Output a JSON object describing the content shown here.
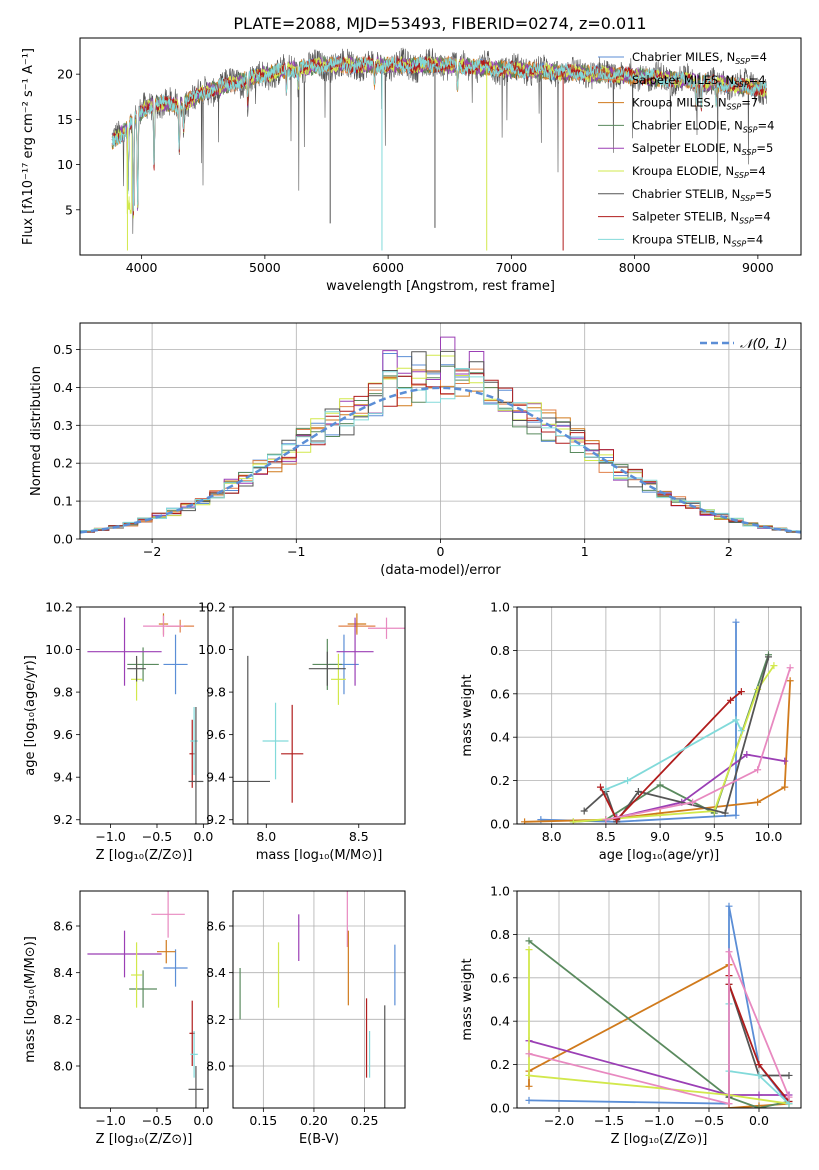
{
  "figure_title": "PLATE=2088, MJD=53493, FIBERID=0274, z=0.011",
  "colors": {
    "Chabrier MILES": "#5b8ed6",
    "Salpeter MILES": "#e0804a",
    "Kroupa MILES": "#d07a1c",
    "Chabrier ELODIE": "#5a8a5e",
    "Salpeter ELODIE": "#9b3fb5",
    "Kroupa ELODIE": "#d2e84c",
    "Chabrier STELIB": "#555555",
    "Salpeter STELIB": "#b01c1c",
    "Kroupa STELIB": "#82dada",
    "pink": "#e889c0",
    "normal_curve": "#5b8ed6",
    "grid": "#b0b0b0"
  },
  "chart_data": [
    {
      "id": "spectrum",
      "type": "line",
      "xlabel": "wavelength [Angstrom, rest frame]",
      "ylabel": "Flux [fλ10⁻¹⁷ erg cm⁻² s⁻¹ A⁻¹]",
      "xlim": [
        3500,
        9350
      ],
      "ylim": [
        0,
        24
      ],
      "xticks": [
        4000,
        5000,
        6000,
        7000,
        8000,
        9000
      ],
      "yticks": [
        5,
        10,
        15,
        20
      ],
      "grid": false,
      "legend_position": "upper right",
      "legend": [
        {
          "label": "Chabrier MILES, N",
          "sub": "SSP",
          "suffix": "=4",
          "key": "Chabrier MILES"
        },
        {
          "label": "Salpeter MILES, N",
          "sub": "SSP",
          "suffix": "=4",
          "key": "Salpeter MILES"
        },
        {
          "label": "Kroupa MILES, N",
          "sub": "SSP",
          "suffix": "=7",
          "key": "Kroupa MILES"
        },
        {
          "label": "Chabrier ELODIE, N",
          "sub": "SSP",
          "suffix": "=4",
          "key": "Chabrier ELODIE"
        },
        {
          "label": "Salpeter ELODIE, N",
          "sub": "SSP",
          "suffix": "=5",
          "key": "Salpeter ELODIE"
        },
        {
          "label": "Kroupa ELODIE, N",
          "sub": "SSP",
          "suffix": "=4",
          "key": "Kroupa ELODIE"
        },
        {
          "label": "Chabrier STELIB, N",
          "sub": "SSP",
          "suffix": "=5",
          "key": "Chabrier STELIB"
        },
        {
          "label": "Salpeter STELIB, N",
          "sub": "SSP",
          "suffix": "=4",
          "key": "Salpeter STELIB"
        },
        {
          "label": "Kroupa STELIB, N",
          "sub": "SSP",
          "suffix": "=4",
          "key": "Kroupa STELIB"
        }
      ],
      "continuum": [
        [
          3760,
          12.5
        ],
        [
          3850,
          13.5
        ],
        [
          3950,
          15.2
        ],
        [
          4050,
          16.4
        ],
        [
          4150,
          16.8
        ],
        [
          4300,
          16.5
        ],
        [
          4500,
          18.0
        ],
        [
          4700,
          18.8
        ],
        [
          5000,
          20.0
        ],
        [
          5200,
          20.5
        ],
        [
          5500,
          21.0
        ],
        [
          6000,
          21.0
        ],
        [
          6500,
          21.0
        ],
        [
          7000,
          20.5
        ],
        [
          7500,
          20.2
        ],
        [
          8000,
          19.8
        ],
        [
          8500,
          19.2
        ],
        [
          9000,
          18.5
        ],
        [
          9070,
          18.2
        ]
      ],
      "absorption_lines": [
        [
          3890,
          7.0
        ],
        [
          3933,
          4.0
        ],
        [
          3968,
          5.0
        ],
        [
          4101,
          10.0
        ],
        [
          4305,
          12.0
        ],
        [
          4340,
          14.0
        ],
        [
          4861,
          17.0
        ],
        [
          5175,
          18.5
        ],
        [
          5270,
          19.0
        ],
        [
          5890,
          19.0
        ],
        [
          6563,
          18.5
        ],
        [
          8498,
          17.0
        ],
        [
          8542,
          16.5
        ],
        [
          8662,
          17.0
        ]
      ],
      "spikes": [
        {
          "x": 5950,
          "y": 0.5,
          "key": "Kroupa STELIB"
        },
        {
          "x": 6800,
          "y": 0.5,
          "key": "Kroupa ELODIE"
        },
        {
          "x": 7420,
          "y": 0.5,
          "key": "Salpeter STELIB"
        },
        {
          "x": 3885,
          "y": 0.5,
          "key": "Kroupa ELODIE"
        },
        {
          "x": 5530,
          "y": 3.5,
          "key": "Chabrier STELIB"
        },
        {
          "x": 6380,
          "y": 3.0,
          "key": "Chabrier STELIB"
        }
      ]
    },
    {
      "id": "residuals",
      "type": "histogram",
      "xlabel": "(data-model)/error",
      "ylabel": "Normed distribution",
      "xlim": [
        -2.5,
        2.5
      ],
      "ylim": [
        0,
        0.57
      ],
      "xticks": [
        -2,
        -1,
        0,
        1,
        2
      ],
      "yticks": [
        0.0,
        0.1,
        0.2,
        0.3,
        0.4,
        0.5
      ],
      "grid": true,
      "legend_position": "upper right",
      "normal_label": "𝒩(0, 1)",
      "bin_width": 0.1,
      "peaks": {
        "Chabrier MILES": 0.5,
        "Salpeter MILES": 0.46,
        "Kroupa MILES": 0.44,
        "Chabrier ELODIE": 0.43,
        "Salpeter ELODIE": 0.54,
        "Kroupa ELODIE": 0.49,
        "Chabrier STELIB": 0.51,
        "Salpeter STELIB": 0.43,
        "Kroupa STELIB": 0.45
      }
    },
    {
      "id": "age-vs-Z",
      "type": "scatter",
      "xlabel": "Z [log₁₀(Z/Z⊙)]",
      "ylabel": "age  [log₁₀(age/yr)]",
      "xlim": [
        -1.33,
        0.05
      ],
      "ylim": [
        9.18,
        10.2
      ],
      "xticks": [
        -1.0,
        -0.5,
        0.0
      ],
      "yticks": [
        9.2,
        9.4,
        9.6,
        9.8,
        10.0,
        10.2
      ],
      "grid": false,
      "points": [
        {
          "key": "Chabrier MILES",
          "x": -0.3,
          "xerr": 0.13,
          "y": 9.93,
          "yerr": 0.14
        },
        {
          "key": "Salpeter MILES",
          "x": -0.25,
          "xerr": 0.15,
          "y": 10.11,
          "yerr": 0.03
        },
        {
          "key": "Kroupa MILES",
          "x": -0.43,
          "xerr": 0.05,
          "y": 10.12,
          "yerr": 0.05
        },
        {
          "key": "Chabrier ELODIE",
          "x": -0.65,
          "xerr": 0.17,
          "y": 9.93,
          "yerr": 0.08
        },
        {
          "key": "Salpeter ELODIE",
          "x": -0.85,
          "xerr": 0.4,
          "y": 9.99,
          "yerr": 0.16
        },
        {
          "key": "Kroupa ELODIE",
          "x": -0.72,
          "xerr": 0.06,
          "y": 9.86,
          "yerr": 0.1
        },
        {
          "key": "Chabrier STELIB",
          "x": -0.72,
          "xerr": 0.1,
          "y": 9.91,
          "yerr": 0.06
        },
        {
          "key": "Salpeter STELIB",
          "x": -0.12,
          "xerr": 0.03,
          "y": 9.51,
          "yerr": 0.16
        },
        {
          "key": "Kroupa STELIB",
          "x": -0.1,
          "xerr": 0.04,
          "y": 9.57,
          "yerr": 0.16
        },
        {
          "key": "Chabrier STELIB",
          "x": -0.08,
          "xerr": 0.08,
          "y": 9.38,
          "yerr": 0.35
        },
        {
          "key": "pink",
          "x": -0.43,
          "xerr": 0.22,
          "y": 10.11,
          "yerr": 0.05
        }
      ]
    },
    {
      "id": "age-vs-mass",
      "type": "scatter",
      "xlabel": "mass [log₁₀(M/M⊙)]",
      "ylabel": "",
      "xlim": [
        7.82,
        8.75
      ],
      "ylim": [
        9.18,
        10.2
      ],
      "xticks": [
        8.0,
        8.5
      ],
      "yticks": [
        9.2,
        9.4,
        9.6,
        9.8,
        10.0,
        10.2
      ],
      "grid": false,
      "points": [
        {
          "key": "Chabrier MILES",
          "x": 8.42,
          "xerr": 0.08,
          "y": 9.93,
          "yerr": 0.14
        },
        {
          "key": "Salpeter MILES",
          "x": 8.49,
          "xerr": 0.1,
          "y": 10.11,
          "yerr": 0.03
        },
        {
          "key": "Kroupa MILES",
          "x": 8.49,
          "xerr": 0.05,
          "y": 10.12,
          "yerr": 0.05
        },
        {
          "key": "Chabrier ELODIE",
          "x": 8.33,
          "xerr": 0.08,
          "y": 9.93,
          "yerr": 0.12
        },
        {
          "key": "Salpeter ELODIE",
          "x": 8.48,
          "xerr": 0.1,
          "y": 9.99,
          "yerr": 0.16
        },
        {
          "key": "Kroupa ELODIE",
          "x": 8.39,
          "xerr": 0.04,
          "y": 9.86,
          "yerr": 0.12
        },
        {
          "key": "Chabrier STELIB",
          "x": 8.33,
          "xerr": 0.1,
          "y": 9.91,
          "yerr": 0.08
        },
        {
          "key": "Salpeter STELIB",
          "x": 8.14,
          "xerr": 0.06,
          "y": 9.51,
          "yerr": 0.23
        },
        {
          "key": "Kroupa STELIB",
          "x": 8.05,
          "xerr": 0.07,
          "y": 9.57,
          "yerr": 0.18
        },
        {
          "key": "Chabrier STELIB",
          "x": 7.9,
          "xerr": 0.12,
          "y": 9.38,
          "yerr": 0.59
        },
        {
          "key": "pink",
          "x": 8.65,
          "xerr": 0.1,
          "y": 10.1,
          "yerr": 0.05
        }
      ]
    },
    {
      "id": "weight-vs-age",
      "type": "line",
      "xlabel": "age  [log₁₀(age/yr)]",
      "ylabel": "mass weight",
      "xlim": [
        7.68,
        10.3
      ],
      "ylim": [
        0,
        1.0
      ],
      "xticks": [
        8.0,
        8.5,
        9.0,
        9.5,
        10.0
      ],
      "yticks": [
        0.0,
        0.2,
        0.4,
        0.6,
        0.8,
        1.0
      ],
      "grid": true,
      "series": [
        {
          "key": "Chabrier MILES",
          "x": [
            7.9,
            8.6,
            9.7,
            9.7
          ],
          "y": [
            0.02,
            0.01,
            0.04,
            0.93
          ]
        },
        {
          "key": "Kroupa MILES",
          "x": [
            7.75,
            8.5,
            9.0,
            9.9,
            10.15,
            10.2
          ],
          "y": [
            0.01,
            0.02,
            0.05,
            0.1,
            0.17,
            0.66
          ]
        },
        {
          "key": "Chabrier ELODIE",
          "x": [
            8.2,
            8.5,
            9.0,
            9.5,
            10.0
          ],
          "y": [
            0.01,
            0.02,
            0.18,
            0.05,
            0.78
          ]
        },
        {
          "key": "Salpeter ELODIE",
          "x": [
            8.6,
            9.2,
            9.8,
            10.15
          ],
          "y": [
            0.03,
            0.1,
            0.32,
            0.29
          ]
        },
        {
          "key": "Kroupa ELODIE",
          "x": [
            8.2,
            9.5,
            9.9,
            10.05
          ],
          "y": [
            0.01,
            0.06,
            0.62,
            0.73
          ]
        },
        {
          "key": "Chabrier STELIB",
          "x": [
            8.3,
            8.5,
            8.6,
            8.8,
            9.6,
            10.0
          ],
          "y": [
            0.06,
            0.15,
            0.01,
            0.15,
            0.05,
            0.77
          ]
        },
        {
          "key": "Salpeter STELIB",
          "x": [
            8.45,
            8.6,
            9.65,
            9.75
          ],
          "y": [
            0.17,
            0.02,
            0.57,
            0.61
          ]
        },
        {
          "key": "Kroupa STELIB",
          "x": [
            8.5,
            8.7,
            9.7,
            9.75
          ],
          "y": [
            0.16,
            0.2,
            0.48,
            0.43
          ]
        },
        {
          "key": "pink",
          "x": [
            8.5,
            9.3,
            9.9,
            10.2
          ],
          "y": [
            0.02,
            0.1,
            0.25,
            0.72
          ]
        }
      ]
    },
    {
      "id": "mass-vs-Z",
      "type": "scatter",
      "xlabel": "Z [log₁₀(Z/Z⊙)]",
      "ylabel": "mass [log₁₀(M/M⊙)]",
      "xlim": [
        -1.33,
        0.05
      ],
      "ylim": [
        7.82,
        8.75
      ],
      "xticks": [
        -1.0,
        -0.5,
        0.0
      ],
      "yticks": [
        8.0,
        8.2,
        8.4,
        8.6
      ],
      "grid": false,
      "points": [
        {
          "key": "Chabrier MILES",
          "x": -0.3,
          "xerr": 0.13,
          "y": 8.42,
          "yerr": 0.08
        },
        {
          "key": "Kroupa MILES",
          "x": -0.4,
          "xerr": 0.1,
          "y": 8.49,
          "yerr": 0.05
        },
        {
          "key": "Chabrier ELODIE",
          "x": -0.65,
          "xerr": 0.15,
          "y": 8.33,
          "yerr": 0.08
        },
        {
          "key": "Salpeter ELODIE",
          "x": -0.85,
          "xerr": 0.4,
          "y": 8.48,
          "yerr": 0.1
        },
        {
          "key": "Kroupa ELODIE",
          "x": -0.72,
          "xerr": 0.06,
          "y": 8.39,
          "yerr": 0.14
        },
        {
          "key": "Salpeter STELIB",
          "x": -0.12,
          "xerr": 0.03,
          "y": 8.14,
          "yerr": 0.14
        },
        {
          "key": "Kroupa STELIB",
          "x": -0.1,
          "xerr": 0.04,
          "y": 8.05,
          "yerr": 0.1
        },
        {
          "key": "Chabrier STELIB",
          "x": -0.08,
          "xerr": 0.08,
          "y": 7.9,
          "yerr": 0.1
        },
        {
          "key": "pink",
          "x": -0.38,
          "xerr": 0.18,
          "y": 8.65,
          "yerr": 0.1
        }
      ]
    },
    {
      "id": "mass-vs-ebv",
      "type": "scatter",
      "xlabel": "E(B-V)",
      "ylabel": "",
      "xlim": [
        0.12,
        0.29
      ],
      "ylim": [
        7.82,
        8.75
      ],
      "xticks": [
        0.15,
        0.2,
        0.25
      ],
      "yticks": [
        8.0,
        8.2,
        8.4,
        8.6
      ],
      "grid": true,
      "points": [
        {
          "key": "Chabrier ELODIE",
          "x": 0.127,
          "xerr": 0,
          "y": 8.31,
          "yerr": 0.11
        },
        {
          "key": "Kroupa ELODIE",
          "x": 0.165,
          "xerr": 0,
          "y": 8.39,
          "yerr": 0.14
        },
        {
          "key": "Salpeter ELODIE",
          "x": 0.185,
          "xerr": 0,
          "y": 8.55,
          "yerr": 0.1
        },
        {
          "key": "pink",
          "x": 0.233,
          "xerr": 0,
          "y": 8.63,
          "yerr": 0.12
        },
        {
          "key": "Kroupa MILES",
          "x": 0.234,
          "xerr": 0,
          "y": 8.42,
          "yerr": 0.16
        },
        {
          "key": "Salpeter STELIB",
          "x": 0.252,
          "xerr": 0,
          "y": 8.12,
          "yerr": 0.17
        },
        {
          "key": "Kroupa STELIB",
          "x": 0.255,
          "xerr": 0,
          "y": 8.05,
          "yerr": 0.1
        },
        {
          "key": "Chabrier STELIB",
          "x": 0.27,
          "xerr": 0,
          "y": 7.99,
          "yerr": 0.27
        },
        {
          "key": "Chabrier MILES",
          "x": 0.28,
          "xerr": 0,
          "y": 8.39,
          "yerr": 0.13
        }
      ]
    },
    {
      "id": "weight-vs-Z",
      "type": "line",
      "xlabel": "Z [log₁₀(Z/Z⊙)]",
      "ylabel": "mass weight",
      "xlim": [
        -2.42,
        0.42
      ],
      "ylim": [
        0,
        1.0
      ],
      "xticks": [
        -2.0,
        -1.5,
        -1.0,
        -0.5,
        0.0
      ],
      "yticks": [
        0.0,
        0.2,
        0.4,
        0.6,
        0.8,
        1.0
      ],
      "grid": true,
      "series": [
        {
          "key": "Chabrier MILES",
          "x": [
            -2.3,
            -0.3,
            -0.3,
            0.0,
            0.3
          ],
          "y": [
            0.035,
            0.02,
            0.93,
            0.2,
            0.02
          ]
        },
        {
          "key": "Kroupa MILES",
          "x": [
            -2.3,
            -2.3,
            -0.3,
            -0.3,
            0.0,
            0.3
          ],
          "y": [
            0.1,
            0.17,
            0.66,
            0.0,
            0.01,
            0.02
          ]
        },
        {
          "key": "Chabrier ELODIE",
          "x": [
            -2.3,
            -0.3,
            0.0,
            0.3
          ],
          "y": [
            0.77,
            0.05,
            0.0,
            0.03
          ]
        },
        {
          "key": "Salpeter ELODIE",
          "x": [
            -2.3,
            -0.3,
            0.0,
            0.3
          ],
          "y": [
            0.31,
            0.06,
            0.06,
            0.06
          ]
        },
        {
          "key": "Kroupa ELODIE",
          "x": [
            -2.3,
            -2.3,
            -0.3,
            0.3
          ],
          "y": [
            0.73,
            0.15,
            0.06,
            0.02
          ]
        },
        {
          "key": "Chabrier STELIB",
          "x": [
            -0.3,
            -0.3,
            0.0,
            0.3
          ],
          "y": [
            0.05,
            0.57,
            0.15,
            0.15
          ]
        },
        {
          "key": "Salpeter STELIB",
          "x": [
            -0.3,
            -0.3,
            0.0,
            0.3
          ],
          "y": [
            0.61,
            0.57,
            0.2,
            0.03
          ]
        },
        {
          "key": "Kroupa STELIB",
          "x": [
            -0.3,
            -0.3,
            0.0,
            0.3
          ],
          "y": [
            0.48,
            0.17,
            0.15,
            0.02
          ]
        },
        {
          "key": "pink",
          "x": [
            -2.3,
            -0.3,
            -0.3,
            0.3
          ],
          "y": [
            0.25,
            0.02,
            0.72,
            0.05
          ]
        }
      ]
    }
  ]
}
